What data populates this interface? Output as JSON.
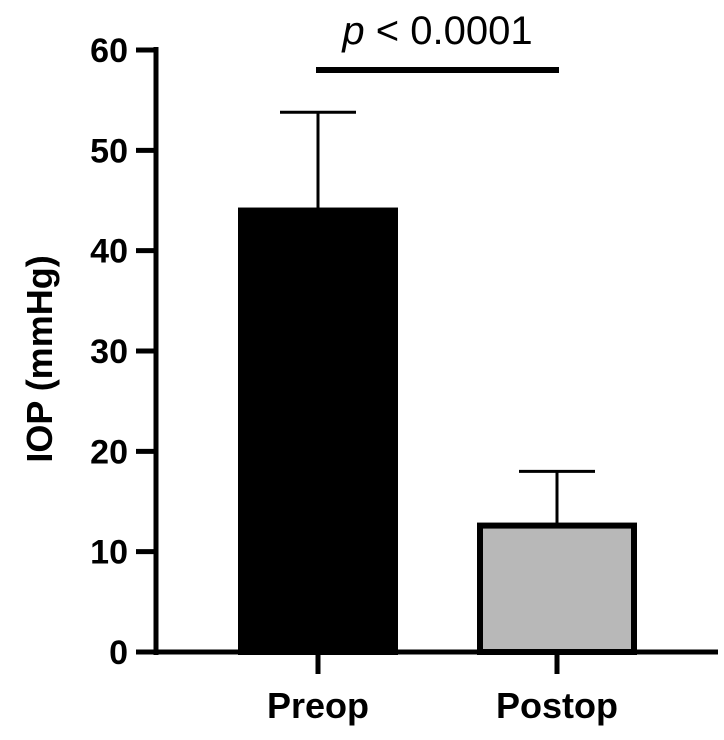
{
  "chart_data": {
    "type": "bar",
    "categories": [
      "Preop",
      "Postop"
    ],
    "values": [
      44,
      12.6
    ],
    "error_upper": [
      53.8,
      18.0
    ],
    "bar_fill_colors": [
      "#000000",
      "#b8b8b8"
    ],
    "bar_stroke_color": "#000000",
    "title": "",
    "xlabel": "",
    "ylabel": "IOP (mmHg)",
    "ylim": [
      0,
      60
    ],
    "yticks": [
      0,
      10,
      20,
      30,
      40,
      50,
      60
    ],
    "ytick_labels": [
      "0",
      "10",
      "20",
      "30",
      "40",
      "50",
      "60"
    ],
    "grid": false,
    "legend": "none",
    "annotation": {
      "p_symbol": "p",
      "comparison_text": " < 0.0001",
      "between": [
        "Preop",
        "Postop"
      ]
    }
  }
}
